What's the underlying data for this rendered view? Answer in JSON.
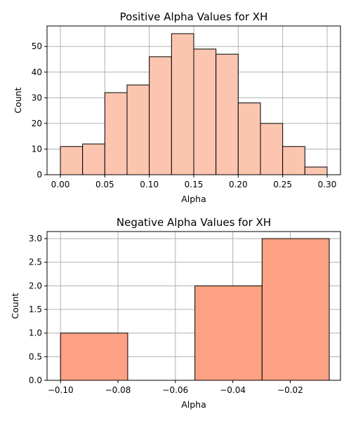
{
  "chart_data": [
    {
      "type": "bar",
      "title": "Positive Alpha Values for XH",
      "xlabel": "Alpha",
      "ylabel": "Count",
      "xlim": [
        -0.015,
        0.315
      ],
      "ylim": [
        0,
        58
      ],
      "xticks": [
        "0.00",
        "0.05",
        "0.10",
        "0.15",
        "0.20",
        "0.25",
        "0.30"
      ],
      "yticks": [
        "0",
        "10",
        "20",
        "30",
        "40",
        "50"
      ],
      "grid": true,
      "bar_color": "#fcc5b0",
      "bins": [
        {
          "x0": 0.0,
          "x1": 0.025,
          "count": 11
        },
        {
          "x0": 0.025,
          "x1": 0.05,
          "count": 12
        },
        {
          "x0": 0.05,
          "x1": 0.075,
          "count": 32
        },
        {
          "x0": 0.075,
          "x1": 0.1,
          "count": 35
        },
        {
          "x0": 0.1,
          "x1": 0.125,
          "count": 46
        },
        {
          "x0": 0.125,
          "x1": 0.15,
          "count": 55
        },
        {
          "x0": 0.15,
          "x1": 0.175,
          "count": 49
        },
        {
          "x0": 0.175,
          "x1": 0.2,
          "count": 47
        },
        {
          "x0": 0.2,
          "x1": 0.225,
          "count": 28
        },
        {
          "x0": 0.225,
          "x1": 0.25,
          "count": 20
        },
        {
          "x0": 0.25,
          "x1": 0.275,
          "count": 11
        },
        {
          "x0": 0.275,
          "x1": 0.3,
          "count": 3
        }
      ]
    },
    {
      "type": "bar",
      "title": "Negative Alpha Values for XH",
      "xlabel": "Alpha",
      "ylabel": "Count",
      "xlim": [
        -0.1047,
        -0.0025
      ],
      "ylim": [
        0,
        3.15
      ],
      "xticks": [
        "−0.10",
        "−0.08",
        "−0.06",
        "−0.04",
        "−0.02"
      ],
      "yticks": [
        "0.0",
        "0.5",
        "1.0",
        "1.5",
        "2.0",
        "2.5",
        "3.0"
      ],
      "grid": true,
      "bar_color": "#fca183",
      "bins": [
        {
          "x0": -0.1,
          "x1": -0.0766,
          "count": 1
        },
        {
          "x0": -0.0766,
          "x1": -0.0532,
          "count": 0
        },
        {
          "x0": -0.0532,
          "x1": -0.0298,
          "count": 2
        },
        {
          "x0": -0.0298,
          "x1": -0.0064,
          "count": 3
        }
      ]
    }
  ]
}
